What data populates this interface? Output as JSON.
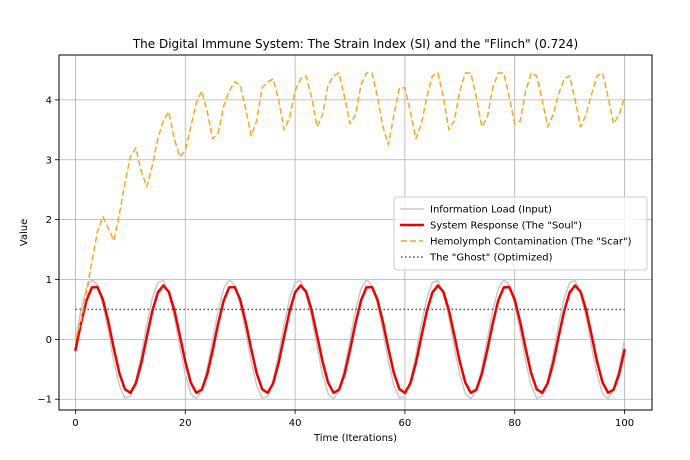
{
  "chart_data": {
    "type": "line",
    "title": "The Digital Immune System: The Strain Index (SI) and the \"Flinch\" (0.724)",
    "xlabel": "Time (Iterations)",
    "ylabel": "Value",
    "xlim": [
      -3,
      105
    ],
    "ylim": [
      -1.18,
      4.75
    ],
    "xticks": [
      0,
      20,
      40,
      60,
      80,
      100
    ],
    "yticks": [
      -1,
      0,
      1,
      2,
      3,
      4
    ],
    "grid": true,
    "legend_position": "center-right",
    "series": [
      {
        "name": "Information Load (Input)",
        "color": "#c8c8c8",
        "style": "solid",
        "kind": "sine",
        "amplitude": 1.0,
        "period": 12.5,
        "phase": 0,
        "x_start": 0,
        "x_end": 100,
        "points": 101
      },
      {
        "name": "System Response (The \"Soul\")",
        "color": "#ee0000",
        "style": "solid",
        "kind": "sine",
        "amplitude": 0.9,
        "period": 12.5,
        "phase": 0.2,
        "x_start": 0,
        "x_end": 100,
        "points": 101
      },
      {
        "name": "Hemolymph Contamination (The \"Scar\")",
        "color": "#f6a623",
        "style": "dashed",
        "kind": "points",
        "x": [
          0,
          1,
          2,
          3,
          4,
          5,
          6,
          7,
          8,
          9,
          10,
          11,
          12,
          13,
          14,
          15,
          16,
          17,
          18,
          19,
          20,
          21,
          22,
          23,
          24,
          25,
          26,
          27,
          28,
          29,
          30,
          31,
          32,
          33,
          34,
          35,
          36,
          37,
          38,
          39,
          40,
          41,
          42,
          43,
          44,
          45,
          46,
          47,
          48,
          49,
          50,
          51,
          52,
          53,
          54,
          55,
          56,
          57,
          58,
          59,
          60,
          61,
          62,
          63,
          64,
          65,
          66,
          67,
          68,
          69,
          70,
          71,
          72,
          73,
          74,
          75,
          76,
          77,
          78,
          79,
          80,
          81,
          82,
          83,
          84,
          85,
          86,
          87,
          88,
          89,
          90,
          91,
          92,
          93,
          94,
          95,
          96,
          97,
          98,
          99,
          100
        ],
        "y": [
          0.0,
          0.3,
          0.8,
          1.3,
          1.8,
          2.05,
          1.85,
          1.65,
          2.1,
          2.6,
          3.05,
          3.2,
          2.8,
          2.55,
          2.9,
          3.35,
          3.65,
          3.8,
          3.35,
          3.05,
          3.15,
          3.55,
          3.95,
          4.15,
          3.8,
          3.35,
          3.45,
          3.9,
          4.15,
          4.3,
          4.25,
          3.85,
          3.4,
          3.65,
          4.2,
          4.3,
          4.35,
          4.0,
          3.5,
          3.7,
          4.15,
          4.35,
          4.4,
          4.05,
          3.55,
          3.75,
          4.25,
          4.4,
          4.45,
          4.05,
          3.6,
          3.75,
          4.25,
          4.45,
          4.45,
          4.05,
          3.55,
          3.25,
          3.75,
          4.2,
          4.2,
          3.8,
          3.35,
          3.6,
          4.05,
          4.4,
          4.45,
          4.05,
          3.5,
          3.65,
          4.15,
          4.45,
          4.45,
          4.05,
          3.55,
          3.7,
          4.2,
          4.45,
          4.45,
          4.05,
          3.6,
          3.65,
          4.15,
          4.45,
          4.4,
          4.0,
          3.55,
          3.75,
          4.1,
          4.35,
          4.4,
          4.0,
          3.55,
          3.75,
          4.1,
          4.4,
          4.45,
          4.05,
          3.6,
          3.75,
          4.05
        ]
      },
      {
        "name": "The \"Ghost\" (Optimized)",
        "color": "#555555",
        "style": "dotted",
        "kind": "constant",
        "value": 0.5,
        "x_start": 0,
        "x_end": 100
      }
    ]
  }
}
